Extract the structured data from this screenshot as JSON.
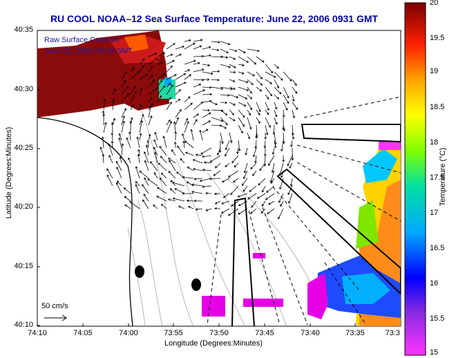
{
  "title": "RU COOL   NOAA–12  Sea Surface Temperature:  June 22, 2006 0931 GMT",
  "legend_line1": "Raw Surface Currents",
  "legend_line2": "June 22, 2006 09:00 GMT",
  "scale_label": "50 cm/s",
  "xlabel": "Longitude (Degrees:Minutes)",
  "ylabel": "Latitude (Degrees:Minutes)",
  "colorbar_label": "Temperature (°C)",
  "chart_data": {
    "type": "heatmap",
    "x_ticks": [
      "74:10",
      "74:05",
      "74:00",
      "73:55",
      "73:50",
      "73:45",
      "73:40",
      "73:35",
      "73:3"
    ],
    "y_ticks": [
      "40:35",
      "40:30",
      "40:25",
      "40:20",
      "40:15",
      "40:10"
    ],
    "colorbar_ticks": [
      "20",
      "19.5",
      "19",
      "18.5",
      "18",
      "17.5",
      "17",
      "16.5",
      "16",
      "15.5",
      "15"
    ],
    "colorbar_range": [
      15,
      20
    ],
    "colormap": "jet-to-magenta",
    "regions": [
      {
        "name": "northwest coastal band",
        "approx_temp": 20.0
      },
      {
        "name": "nearshore patch",
        "approx_temp": 16.7
      },
      {
        "name": "eastern offshore band",
        "approx_temp": 17.4
      },
      {
        "name": "southeast offshore band",
        "approx_temp": 15.7
      },
      {
        "name": "southern patch",
        "approx_temp": 15.0
      }
    ]
  },
  "colors": {
    "title": "#0000b0",
    "land": "#ffffff",
    "warm": "#8b0a0a",
    "cool": "#e600e6"
  }
}
